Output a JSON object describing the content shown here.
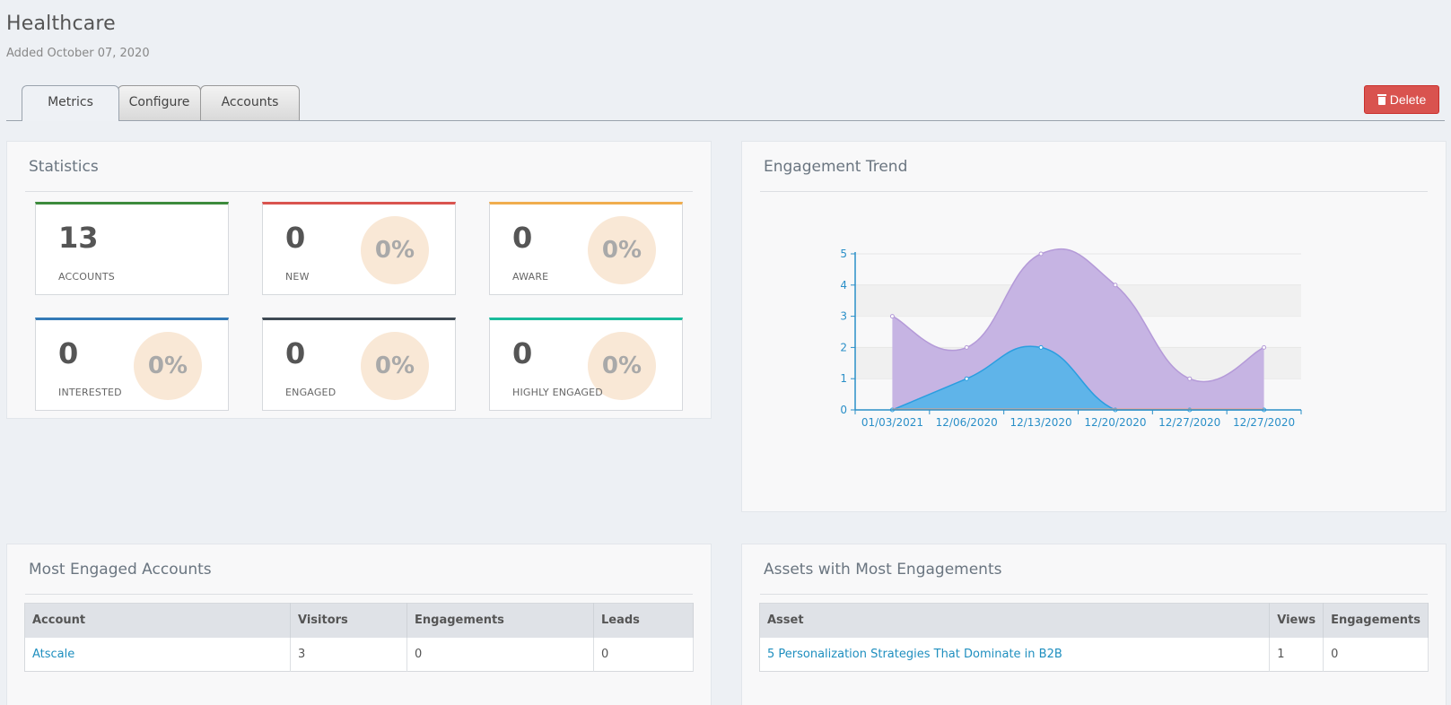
{
  "header": {
    "title": "Healthcare",
    "subtitle": "Added October 07, 2020"
  },
  "tabs": [
    {
      "label": "Metrics",
      "active": true
    },
    {
      "label": "Configure",
      "active": false
    },
    {
      "label": "Accounts",
      "active": false
    }
  ],
  "actions": {
    "delete_label": "Delete",
    "delete_icon": "trash-icon"
  },
  "statistics": {
    "title": "Statistics",
    "cards": [
      {
        "value": "13",
        "label": "ACCOUNTS",
        "percent": null,
        "color": "#3d8b3d"
      },
      {
        "value": "0",
        "label": "NEW",
        "percent": "0%",
        "color": "#d9534f"
      },
      {
        "value": "0",
        "label": "AWARE",
        "percent": "0%",
        "color": "#f0ad4e"
      },
      {
        "value": "0",
        "label": "INTERESTED",
        "percent": "0%",
        "color": "#337ab7"
      },
      {
        "value": "0",
        "label": "ENGAGED",
        "percent": "0%",
        "color": "#3f4a54"
      },
      {
        "value": "0",
        "label": "HIGHLY ENGAGED",
        "percent": "0%",
        "color": "#1abc9c"
      }
    ]
  },
  "engagement_trend": {
    "title": "Engagement Trend"
  },
  "chart_data": {
    "type": "area",
    "title": "Engagement Trend",
    "categories": [
      "01/03/2021",
      "12/06/2020",
      "12/13/2020",
      "12/20/2020",
      "12/27/2020",
      "12/27/2020"
    ],
    "y_ticks": [
      "0",
      "1",
      "2",
      "3",
      "4",
      "5"
    ],
    "ylim": [
      0,
      5
    ],
    "grid": true,
    "series": [
      {
        "name": "series-purple",
        "color": "#c6b4e3",
        "stroke": "#b49ad8",
        "values": [
          3,
          2,
          5,
          4,
          1,
          2
        ]
      },
      {
        "name": "series-blue",
        "color": "#5fb4e9",
        "stroke": "#2a9ee0",
        "values": [
          0,
          1,
          2,
          0,
          0,
          0
        ]
      }
    ]
  },
  "most_engaged": {
    "title": "Most Engaged Accounts",
    "columns": [
      "Account",
      "Visitors",
      "Engagements",
      "Leads"
    ],
    "rows": [
      {
        "account": "Atscale",
        "visitors": "3",
        "engagements": "0",
        "leads": "0"
      }
    ]
  },
  "assets": {
    "title": "Assets with Most Engagements",
    "columns": [
      "Asset",
      "Views",
      "Engagements"
    ],
    "rows": [
      {
        "asset": "5 Personalization Strategies That Dominate in B2B",
        "views": "1",
        "engagements": "0"
      }
    ]
  }
}
